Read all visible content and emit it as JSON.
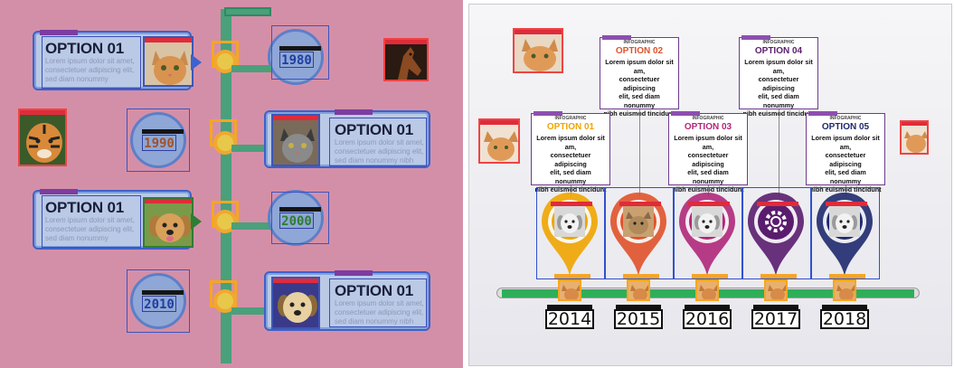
{
  "left": {
    "cards": [
      {
        "title": "OPTION 01",
        "body": [
          "Lorem ipsum dolor sit amet,",
          "consectetuer adipiscing elit,",
          "sed diam nonummy"
        ]
      },
      {
        "title": "OPTION 01",
        "body": [
          "Lorem ipsum dolor sit amet,",
          "consectetuer adipiscing elit,",
          "sed diam nonummy nibh"
        ]
      },
      {
        "title": "OPTION 01",
        "body": [
          "Lorem ipsum dolor sit amet,",
          "consectetuer adipiscing elit,",
          "sed diam nonummy"
        ]
      },
      {
        "title": "OPTION 01",
        "body": [
          "Lorem ipsum dolor sit amet,",
          "consectetuer adipiscing elit,",
          "sed diam nonummy nibh"
        ]
      }
    ],
    "years": [
      "1980",
      "1990",
      "2000",
      "2010"
    ],
    "year_colors": [
      "#1d3fa0",
      "#a0522d",
      "#2e7d32",
      "#1d3fa0"
    ]
  },
  "right": {
    "infographics": [
      {
        "head": "INFOGRAPHIC",
        "option": "OPTION 01",
        "color": "#f0a500",
        "text": [
          "Lorem ipsum dolor sit am,",
          "consectetuer adipiscing",
          "elit, sed diam nonummy",
          "nibh euismod tincidunt"
        ]
      },
      {
        "head": "INFOGRAPHIC",
        "option": "OPTION 02",
        "color": "#e0522a",
        "text": [
          "Lorem ipsum dolor sit am,",
          "consectetuer adipiscing",
          "elit, sed diam nonummy",
          "nibh euismod tincidunt"
        ]
      },
      {
        "head": "INFOGRAPHIC",
        "option": "OPTION 03",
        "color": "#b0287a",
        "text": [
          "Lorem ipsum dolor sit am,",
          "consectetuer adipiscing",
          "elit, sed diam nonummy",
          "nibh euismod tincidunt"
        ]
      },
      {
        "head": "INFOGRAPHIC",
        "option": "OPTION 04",
        "color": "#5a1d6e",
        "text": [
          "Lorem ipsum dolor sit am,",
          "consectetuer adipiscing",
          "elit, sed diam nonummy",
          "nibh euismod tincidunt"
        ]
      },
      {
        "head": "INFOGRAPHIC",
        "option": "OPTION 05",
        "color": "#1f2a6e",
        "text": [
          "Lorem ipsum dolor sit am,",
          "consectetuer adipiscing",
          "elit, sed diam nonummy",
          "nibh euismod tincidunt"
        ]
      }
    ],
    "years": [
      "2014",
      "2015",
      "2016",
      "2017",
      "2018"
    ],
    "pin_colors": [
      "#f0a500",
      "#e0522a",
      "#b0287a",
      "#5a1d6e",
      "#1f2a6e"
    ],
    "pin_icons": [
      "dog-icon",
      "cat-icon",
      "dog-icon",
      "gear-icon",
      "dog-icon"
    ]
  }
}
